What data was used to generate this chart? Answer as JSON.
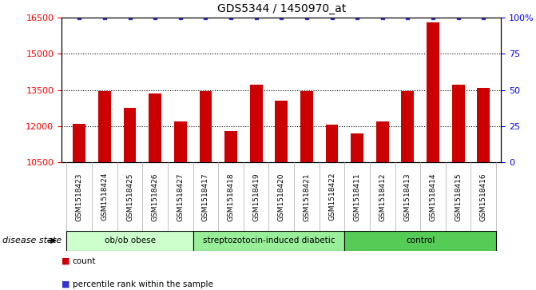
{
  "title": "GDS5344 / 1450970_at",
  "samples": [
    "GSM1518423",
    "GSM1518424",
    "GSM1518425",
    "GSM1518426",
    "GSM1518427",
    "GSM1518417",
    "GSM1518418",
    "GSM1518419",
    "GSM1518420",
    "GSM1518421",
    "GSM1518422",
    "GSM1518411",
    "GSM1518412",
    "GSM1518413",
    "GSM1518414",
    "GSM1518415",
    "GSM1518416"
  ],
  "counts": [
    12100,
    13450,
    12750,
    13350,
    12200,
    13450,
    11800,
    13700,
    13050,
    13450,
    12050,
    11700,
    12200,
    13450,
    16300,
    13700,
    13600
  ],
  "percentiles": [
    100,
    100,
    100,
    100,
    100,
    100,
    100,
    100,
    100,
    100,
    100,
    100,
    100,
    100,
    100,
    100,
    100
  ],
  "groups": [
    {
      "label": "ob/ob obese",
      "start": 0,
      "end": 5,
      "color": "#ccffcc"
    },
    {
      "label": "streptozotocin-induced diabetic",
      "start": 5,
      "end": 11,
      "color": "#99ee99"
    },
    {
      "label": "control",
      "start": 11,
      "end": 17,
      "color": "#55cc55"
    }
  ],
  "bar_color": "#cc0000",
  "dot_color": "#3333cc",
  "ylim_left": [
    10500,
    16500
  ],
  "ylim_right": [
    0,
    100
  ],
  "yticks_left": [
    10500,
    12000,
    13500,
    15000,
    16500
  ],
  "yticks_right": [
    0,
    25,
    50,
    75,
    100
  ],
  "grid_values": [
    12000,
    13500,
    15000
  ],
  "bg_color": "#e8e8e8",
  "plot_bg": "#ffffff",
  "disease_state_label": "disease state",
  "legend_items": [
    {
      "label": "count",
      "color": "#cc0000"
    },
    {
      "label": "percentile rank within the sample",
      "color": "#3333cc"
    }
  ]
}
